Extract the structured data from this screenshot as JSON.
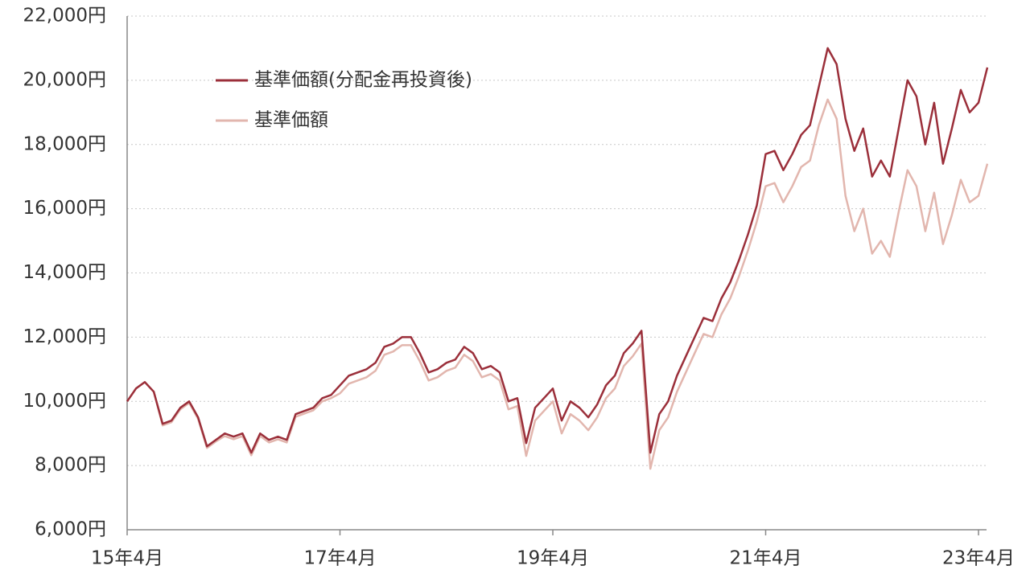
{
  "chart_data": {
    "type": "line",
    "categories": [
      "15年4月",
      null,
      null,
      null,
      null,
      null,
      null,
      null,
      null,
      null,
      null,
      null,
      null,
      null,
      null,
      null,
      null,
      null,
      null,
      null,
      null,
      null,
      null,
      null,
      "17年4月",
      null,
      null,
      null,
      null,
      null,
      null,
      null,
      null,
      null,
      null,
      null,
      null,
      null,
      null,
      null,
      null,
      null,
      null,
      null,
      null,
      null,
      null,
      null,
      "19年4月",
      null,
      null,
      null,
      null,
      null,
      null,
      null,
      null,
      null,
      null,
      null,
      null,
      null,
      null,
      null,
      null,
      null,
      null,
      null,
      null,
      null,
      null,
      null,
      "21年4月",
      null,
      null,
      null,
      null,
      null,
      null,
      null,
      null,
      null,
      null,
      null,
      null,
      null,
      null,
      null,
      null,
      null,
      null,
      null,
      null,
      null,
      null,
      null,
      "23年4月",
      null
    ],
    "series": [
      {
        "name": "基準価額(分配金再投資後)",
        "color": "#9b2f3a",
        "values": [
          10000,
          10400,
          10600,
          10300,
          9300,
          9400,
          9800,
          10000,
          9500,
          8600,
          8800,
          9000,
          8900,
          9000,
          8400,
          9000,
          8800,
          8900,
          8800,
          9600,
          9700,
          9800,
          10100,
          10200,
          10500,
          10800,
          10900,
          11000,
          11200,
          11700,
          11800,
          12000,
          12000,
          11500,
          10900,
          11000,
          11200,
          11300,
          11700,
          11500,
          11000,
          11100,
          10900,
          10000,
          10100,
          8700,
          9800,
          10100,
          10400,
          9400,
          10000,
          9800,
          9500,
          9900,
          10500,
          10800,
          11500,
          11800,
          12200,
          8400,
          9600,
          10000,
          10800,
          11400,
          12000,
          12600,
          12500,
          13200,
          13700,
          14400,
          15200,
          16100,
          17700,
          17800,
          17200,
          17700,
          18300,
          18600,
          19800,
          21000,
          20500,
          18800,
          17800,
          18500,
          17000,
          17500,
          17000,
          18500,
          20000,
          19500,
          18000,
          19300,
          17400,
          18500,
          19700,
          19000,
          19300,
          20400
        ]
      },
      {
        "name": "基準価額",
        "color": "#e2b6ae",
        "values": [
          10000,
          10400,
          10600,
          10300,
          9250,
          9350,
          9750,
          9950,
          9450,
          8550,
          8750,
          8920,
          8820,
          8920,
          8320,
          8920,
          8720,
          8820,
          8720,
          9520,
          9620,
          9720,
          10000,
          10100,
          10250,
          10550,
          10650,
          10750,
          10950,
          11450,
          11550,
          11750,
          11750,
          11250,
          10650,
          10750,
          10950,
          11050,
          11450,
          11250,
          10750,
          10850,
          10650,
          9750,
          9850,
          8300,
          9400,
          9700,
          10000,
          9000,
          9600,
          9400,
          9100,
          9500,
          10100,
          10400,
          11100,
          11400,
          11800,
          7900,
          9100,
          9500,
          10300,
          10900,
          11500,
          12100,
          12000,
          12700,
          13200,
          13900,
          14700,
          15600,
          16700,
          16800,
          16200,
          16700,
          17300,
          17500,
          18600,
          19400,
          18800,
          16400,
          15300,
          16000,
          14600,
          15000,
          14500,
          15900,
          17200,
          16700,
          15300,
          16500,
          14900,
          15800,
          16900,
          16200,
          16400,
          17400
        ]
      }
    ],
    "ylim": [
      6000,
      22000
    ],
    "yticks": [
      {
        "value": 6000,
        "label": "6,000円"
      },
      {
        "value": 8000,
        "label": "8,000円"
      },
      {
        "value": 10000,
        "label": "10,000円"
      },
      {
        "value": 12000,
        "label": "12,000円"
      },
      {
        "value": 14000,
        "label": "14,000円"
      },
      {
        "value": 16000,
        "label": "16,000円"
      },
      {
        "value": 18000,
        "label": "18,000円"
      },
      {
        "value": 20000,
        "label": "20,000円"
      },
      {
        "value": 22000,
        "label": "22,000円"
      }
    ],
    "grid": true,
    "legend": "top-left"
  }
}
